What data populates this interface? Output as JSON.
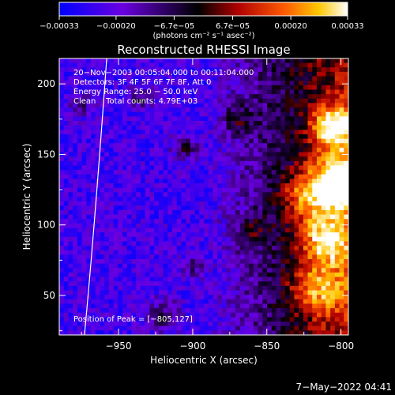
{
  "chart_data": {
    "type": "heatmap",
    "title": "Reconstructed RHESSI Image",
    "xlabel": "Heliocentric X (arcsec)",
    "ylabel": "Heliocentric Y (arcsec)",
    "xlim": [
      -990,
      -795
    ],
    "ylim": [
      22,
      218
    ],
    "x_ticks": [
      -950,
      -900,
      -850,
      -800
    ],
    "x_tick_labels": [
      "−950",
      "−900",
      "−850",
      "−800"
    ],
    "y_ticks": [
      50,
      100,
      150,
      200
    ],
    "y_tick_labels": [
      "50",
      "100",
      "150",
      "200"
    ],
    "colorbar": {
      "min": -0.00033,
      "max": 0.00033,
      "ticks": [
        -0.00033,
        -0.0002,
        -6.7e-05,
        6.7e-05,
        0.0002,
        0.00033
      ],
      "tick_labels": [
        "−0.00033",
        "−0.00020",
        "−6.7e−05",
        "6.7e−05",
        "0.00020",
        "0.00033"
      ],
      "units": "(photons cm⁻² s⁻¹ asec⁻²)",
      "colors": [
        "#0000ff",
        "#6a00e0",
        "#000000",
        "#b00000",
        "#ff5a00",
        "#ffc800",
        "#ffffff"
      ]
    },
    "annotations": [
      "20−Nov−2003 00:05:04.000 to 00:11:04.000",
      "Detectors: 3F 4F 5F 6F 7F 8F, Att 0",
      "Energy Range: 25.0 − 50.0 keV",
      "Clean    Total counts: 4.79E+03"
    ],
    "peak_label": "Position of Peak = [−805,127]",
    "peak_position": [
      -805,
      127
    ],
    "limb_curve": [
      [
        -973,
        22
      ],
      [
        -966,
        100
      ],
      [
        -958,
        218
      ]
    ],
    "grid": false,
    "legend": "none"
  },
  "footer": {
    "timestamp": "7−May−2022 04:41"
  }
}
